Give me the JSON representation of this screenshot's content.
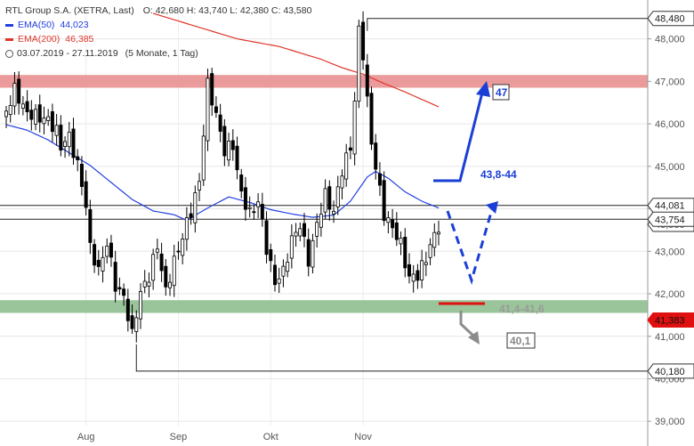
{
  "legend": {
    "title": "RTL Group S.A. (XETRA, Last)",
    "ohlc": "O: 42,680   H: 43,740   L: 42,380   C: 43,580",
    "ema50_label": "EMA(50)",
    "ema50_value": "44,023",
    "ema200_label": "EMA(200)",
    "ema200_value": "46,385",
    "period": "03.07.2019 - 27.11.2019",
    "period_note": "(5 Monate, 1 Tag)"
  },
  "colors": {
    "up_candle": "#ffffff",
    "down_candle": "#000000",
    "ema50": "#2340e0",
    "ema200": "#e0362a",
    "resistance_zone": "#e88a8a",
    "support_zone": "#8fbf8f",
    "arrow_blue": "#1a3fd6",
    "arrow_gray": "#8c8c8c",
    "level_red": "#e01010"
  },
  "chart_data": {
    "type": "candlestick",
    "ylim": [
      38.9,
      48.6
    ],
    "yticks": [
      "39,000",
      "40,000",
      "41,000",
      "42,000",
      "43,000",
      "44,000",
      "45,000",
      "46,000",
      "47,000",
      "48,000"
    ],
    "xticks": [
      "Aug",
      "Sep",
      "Okt",
      "Nov"
    ],
    "xtick_index": [
      19,
      41,
      63,
      85
    ],
    "n_bars": 104,
    "anchors": [
      [
        0,
        46.3
      ],
      [
        2,
        46.9
      ],
      [
        5,
        46.4
      ],
      [
        8,
        46.2
      ],
      [
        10,
        46.0
      ],
      [
        12,
        45.7
      ],
      [
        13,
        45.3
      ],
      [
        15,
        45.6
      ],
      [
        17,
        45.0
      ],
      [
        19,
        44.2
      ],
      [
        20,
        43.2
      ],
      [
        22,
        42.7
      ],
      [
        24,
        43.3
      ],
      [
        26,
        42.2
      ],
      [
        28,
        41.8
      ],
      [
        30,
        40.9
      ],
      [
        32,
        41.9
      ],
      [
        34,
        42.4
      ],
      [
        36,
        43.2
      ],
      [
        38,
        42.2
      ],
      [
        40,
        42.9
      ],
      [
        42,
        43.4
      ],
      [
        44,
        43.9
      ],
      [
        46,
        44.5
      ],
      [
        48,
        46.8
      ],
      [
        50,
        46.1
      ],
      [
        52,
        45.4
      ],
      [
        54,
        45.6
      ],
      [
        56,
        44.5
      ],
      [
        58,
        44.0
      ],
      [
        60,
        44.2
      ],
      [
        62,
        43.0
      ],
      [
        64,
        42.1
      ],
      [
        66,
        42.4
      ],
      [
        68,
        43.2
      ],
      [
        70,
        43.7
      ],
      [
        72,
        42.9
      ],
      [
        74,
        43.8
      ],
      [
        76,
        44.4
      ],
      [
        78,
        43.9
      ],
      [
        80,
        44.8
      ],
      [
        82,
        45.3
      ],
      [
        83,
        46.4
      ],
      [
        84,
        48.1
      ],
      [
        85,
        47.6
      ],
      [
        86,
        46.5
      ],
      [
        87,
        45.6
      ],
      [
        88,
        45.1
      ],
      [
        90,
        44.0
      ],
      [
        92,
        43.7
      ],
      [
        94,
        43.2
      ],
      [
        96,
        42.3
      ],
      [
        98,
        42.3
      ],
      [
        100,
        42.7
      ],
      [
        102,
        43.3
      ],
      [
        103,
        43.58
      ]
    ],
    "ema50": [
      [
        0,
        45.98
      ],
      [
        5,
        45.85
      ],
      [
        10,
        45.62
      ],
      [
        15,
        45.32
      ],
      [
        20,
        45.02
      ],
      [
        25,
        44.62
      ],
      [
        30,
        44.22
      ],
      [
        35,
        43.95
      ],
      [
        40,
        43.86
      ],
      [
        43,
        43.73
      ],
      [
        48,
        44.02
      ],
      [
        53,
        44.28
      ],
      [
        58,
        44.15
      ],
      [
        63,
        43.98
      ],
      [
        68,
        43.88
      ],
      [
        73,
        43.8
      ],
      [
        78,
        43.85
      ],
      [
        82,
        44.18
      ],
      [
        86,
        44.75
      ],
      [
        88,
        44.88
      ],
      [
        91,
        44.72
      ],
      [
        95,
        44.4
      ],
      [
        99,
        44.18
      ],
      [
        103,
        44.02
      ]
    ],
    "ema200": [
      [
        35,
        48.6
      ],
      [
        45,
        48.3
      ],
      [
        55,
        48.0
      ],
      [
        65,
        47.82
      ],
      [
        75,
        47.52
      ],
      [
        80,
        47.32
      ],
      [
        85,
        47.17
      ],
      [
        90,
        46.95
      ],
      [
        95,
        46.75
      ],
      [
        103,
        46.4
      ]
    ],
    "ema200_last": "46,385",
    "levels": {
      "top": {
        "value": 48.48,
        "label": "48,480",
        "from_index": 86
      },
      "ema50_h": {
        "value": 44.081,
        "label": "44,081"
      },
      "ema50_line_label": "44,023",
      "last": {
        "value": 43.754,
        "label": "43,754"
      },
      "last_hidden": "43,580",
      "support_red": {
        "value": 41.383,
        "label": "41,383"
      },
      "bottom": {
        "value": 40.18,
        "label": "40,180",
        "from_index": 31
      }
    },
    "zones": {
      "resistance": [
        46.85,
        47.15
      ],
      "support": [
        41.55,
        41.85
      ]
    },
    "annotations": {
      "target_up": "47",
      "range_up": "43,8-44",
      "range_down": "41,4-41,6",
      "target_down": "40,1"
    }
  }
}
